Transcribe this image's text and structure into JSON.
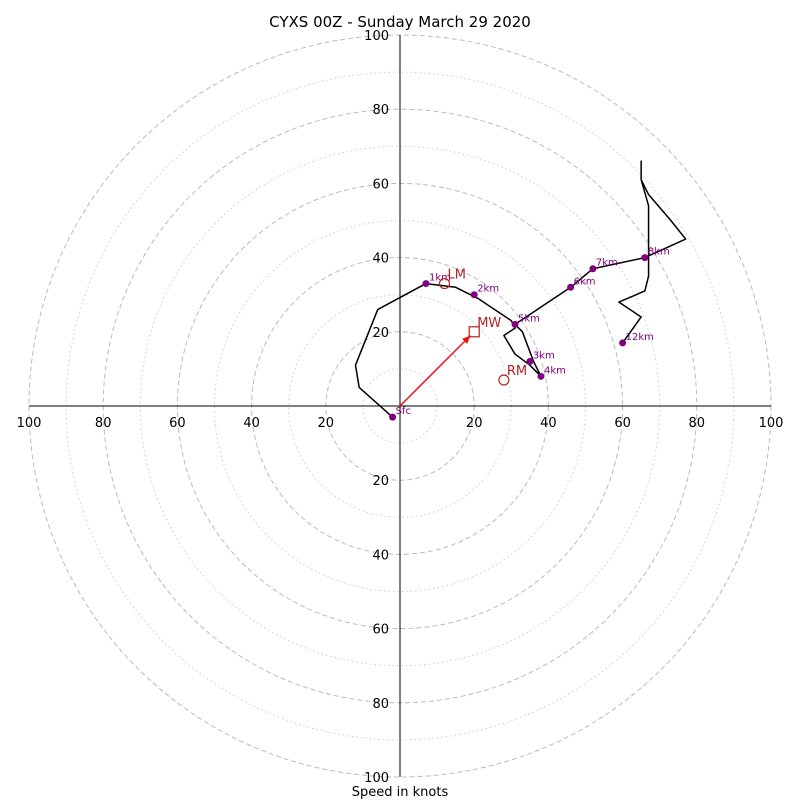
{
  "chart_data": {
    "type": "hodograph",
    "title": "CYXS 00Z - Sunday March 29 2020",
    "xlabel": "Speed in knots",
    "rmax": 100,
    "ring_major": [
      20,
      40,
      60,
      80,
      100
    ],
    "ring_minor": [
      10,
      30,
      50,
      70,
      90
    ],
    "tick_labels": [
      "20",
      "40",
      "60",
      "80",
      "100"
    ],
    "hodograph_trace": [
      [
        -2,
        -3
      ],
      [
        -11,
        5
      ],
      [
        -12,
        11
      ],
      [
        -6,
        26
      ],
      [
        7,
        33
      ],
      [
        15,
        32
      ],
      [
        21,
        29
      ],
      [
        30,
        23
      ],
      [
        31,
        21
      ],
      [
        28,
        19
      ],
      [
        31,
        14
      ],
      [
        35,
        11
      ],
      [
        38,
        8
      ],
      [
        36,
        12
      ],
      [
        33,
        20
      ],
      [
        31,
        22
      ],
      [
        46,
        32
      ],
      [
        52,
        37
      ],
      [
        66,
        40
      ],
      [
        77,
        45
      ],
      [
        73,
        50
      ],
      [
        67,
        57
      ],
      [
        65,
        61
      ],
      [
        65,
        66
      ],
      [
        65,
        61
      ],
      [
        67,
        54
      ],
      [
        67,
        43
      ],
      [
        67,
        35
      ],
      [
        66,
        31
      ],
      [
        59,
        28
      ],
      [
        65,
        24
      ],
      [
        60,
        17
      ]
    ],
    "height_markers": [
      {
        "label": "Sfc",
        "u": -2,
        "v": -3
      },
      {
        "label": "1km",
        "u": 7,
        "v": 33
      },
      {
        "label": "2km",
        "u": 20,
        "v": 30
      },
      {
        "label": "3km",
        "u": 35,
        "v": 12
      },
      {
        "label": "4km",
        "u": 38,
        "v": 8
      },
      {
        "label": "5km",
        "u": 31,
        "v": 22
      },
      {
        "label": "6km",
        "u": 46,
        "v": 32
      },
      {
        "label": "7km",
        "u": 52,
        "v": 37
      },
      {
        "label": "8km",
        "u": 66,
        "v": 40
      },
      {
        "label": "12km",
        "u": 60,
        "v": 17
      }
    ],
    "storm_motions": [
      {
        "label": "LM",
        "u": 12,
        "v": 33,
        "marker": "circle"
      },
      {
        "label": "MW",
        "u": 20,
        "v": 20,
        "marker": "square"
      },
      {
        "label": "RM",
        "u": 28,
        "v": 7,
        "marker": "circle"
      }
    ],
    "mean_wind_vector": {
      "from": [
        0,
        0
      ],
      "to": [
        19,
        19
      ]
    },
    "colors": {
      "trace": "#000000",
      "markers": "#800080",
      "marker_labels": "#800080",
      "storm_motion": "#b22222",
      "vector": "#ee1111",
      "grid": "#bbbbbb"
    }
  }
}
